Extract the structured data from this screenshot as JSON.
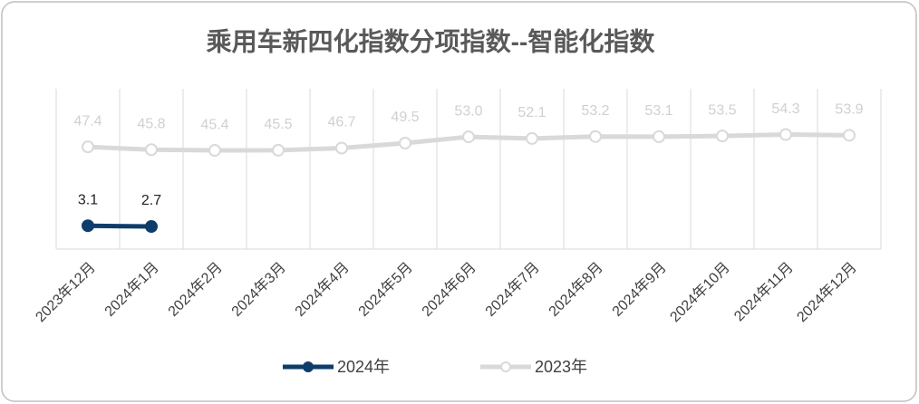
{
  "chart_data": {
    "type": "line",
    "title": "乘用车新四化指数分项指数--智能化指数",
    "categories": [
      "2023年12月",
      "2024年1月",
      "2024年2月",
      "2024年3月",
      "2024年4月",
      "2024年5月",
      "2024年6月",
      "2024年7月",
      "2024年8月",
      "2024年9月",
      "2024年10月",
      "2024年11月",
      "2024年12月"
    ],
    "series": [
      {
        "name": "2024年",
        "color": "#0e3d6b",
        "label_color": "#222222",
        "values": [
          3.1,
          2.7,
          null,
          null,
          null,
          null,
          null,
          null,
          null,
          null,
          null,
          null,
          null
        ],
        "value_labels": [
          "3.1",
          "2.7",
          null,
          null,
          null,
          null,
          null,
          null,
          null,
          null,
          null,
          null,
          null
        ]
      },
      {
        "name": "2023年",
        "color": "#d9d9d9",
        "label_color": "#d0d0d0",
        "values": [
          47.4,
          45.8,
          45.4,
          45.5,
          46.7,
          49.5,
          53.0,
          52.1,
          53.2,
          53.1,
          53.5,
          54.3,
          53.9
        ],
        "value_labels": [
          "47.4",
          "45.8",
          "45.4",
          "45.5",
          "46.7",
          "49.5",
          "53.0",
          "52.1",
          "53.2",
          "53.1",
          "53.5",
          "54.3",
          "53.9"
        ]
      }
    ],
    "ylim": [
      -10,
      80
    ],
    "grid": true,
    "legend": "bottom"
  }
}
